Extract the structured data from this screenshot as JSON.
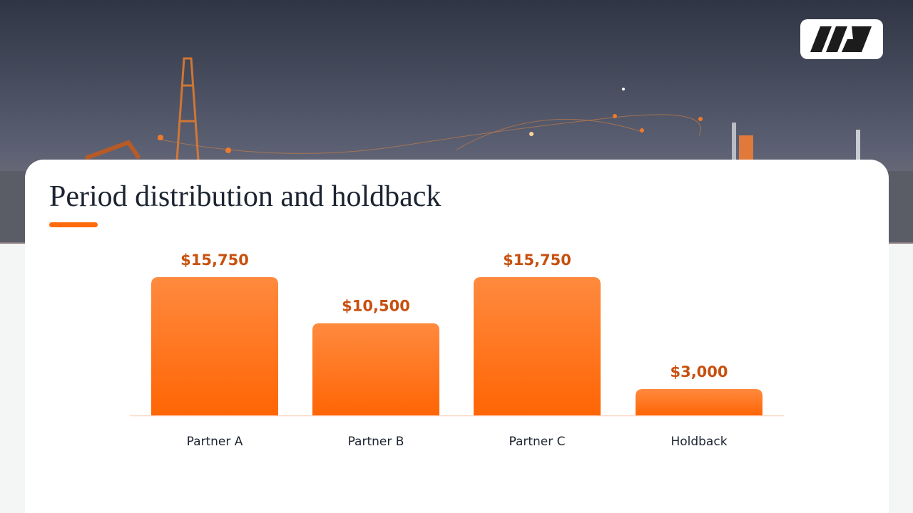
{
  "chart_data": {
    "type": "bar",
    "title": "Period distribution and holdback",
    "categories": [
      "Partner A",
      "Partner B",
      "Partner C",
      "Holdback"
    ],
    "values": [
      15750,
      10500,
      15750,
      3000
    ],
    "value_labels": [
      "$15,750",
      "$10,500",
      "$15,750",
      "$3,000"
    ],
    "color": "#ff6a0d"
  }
}
